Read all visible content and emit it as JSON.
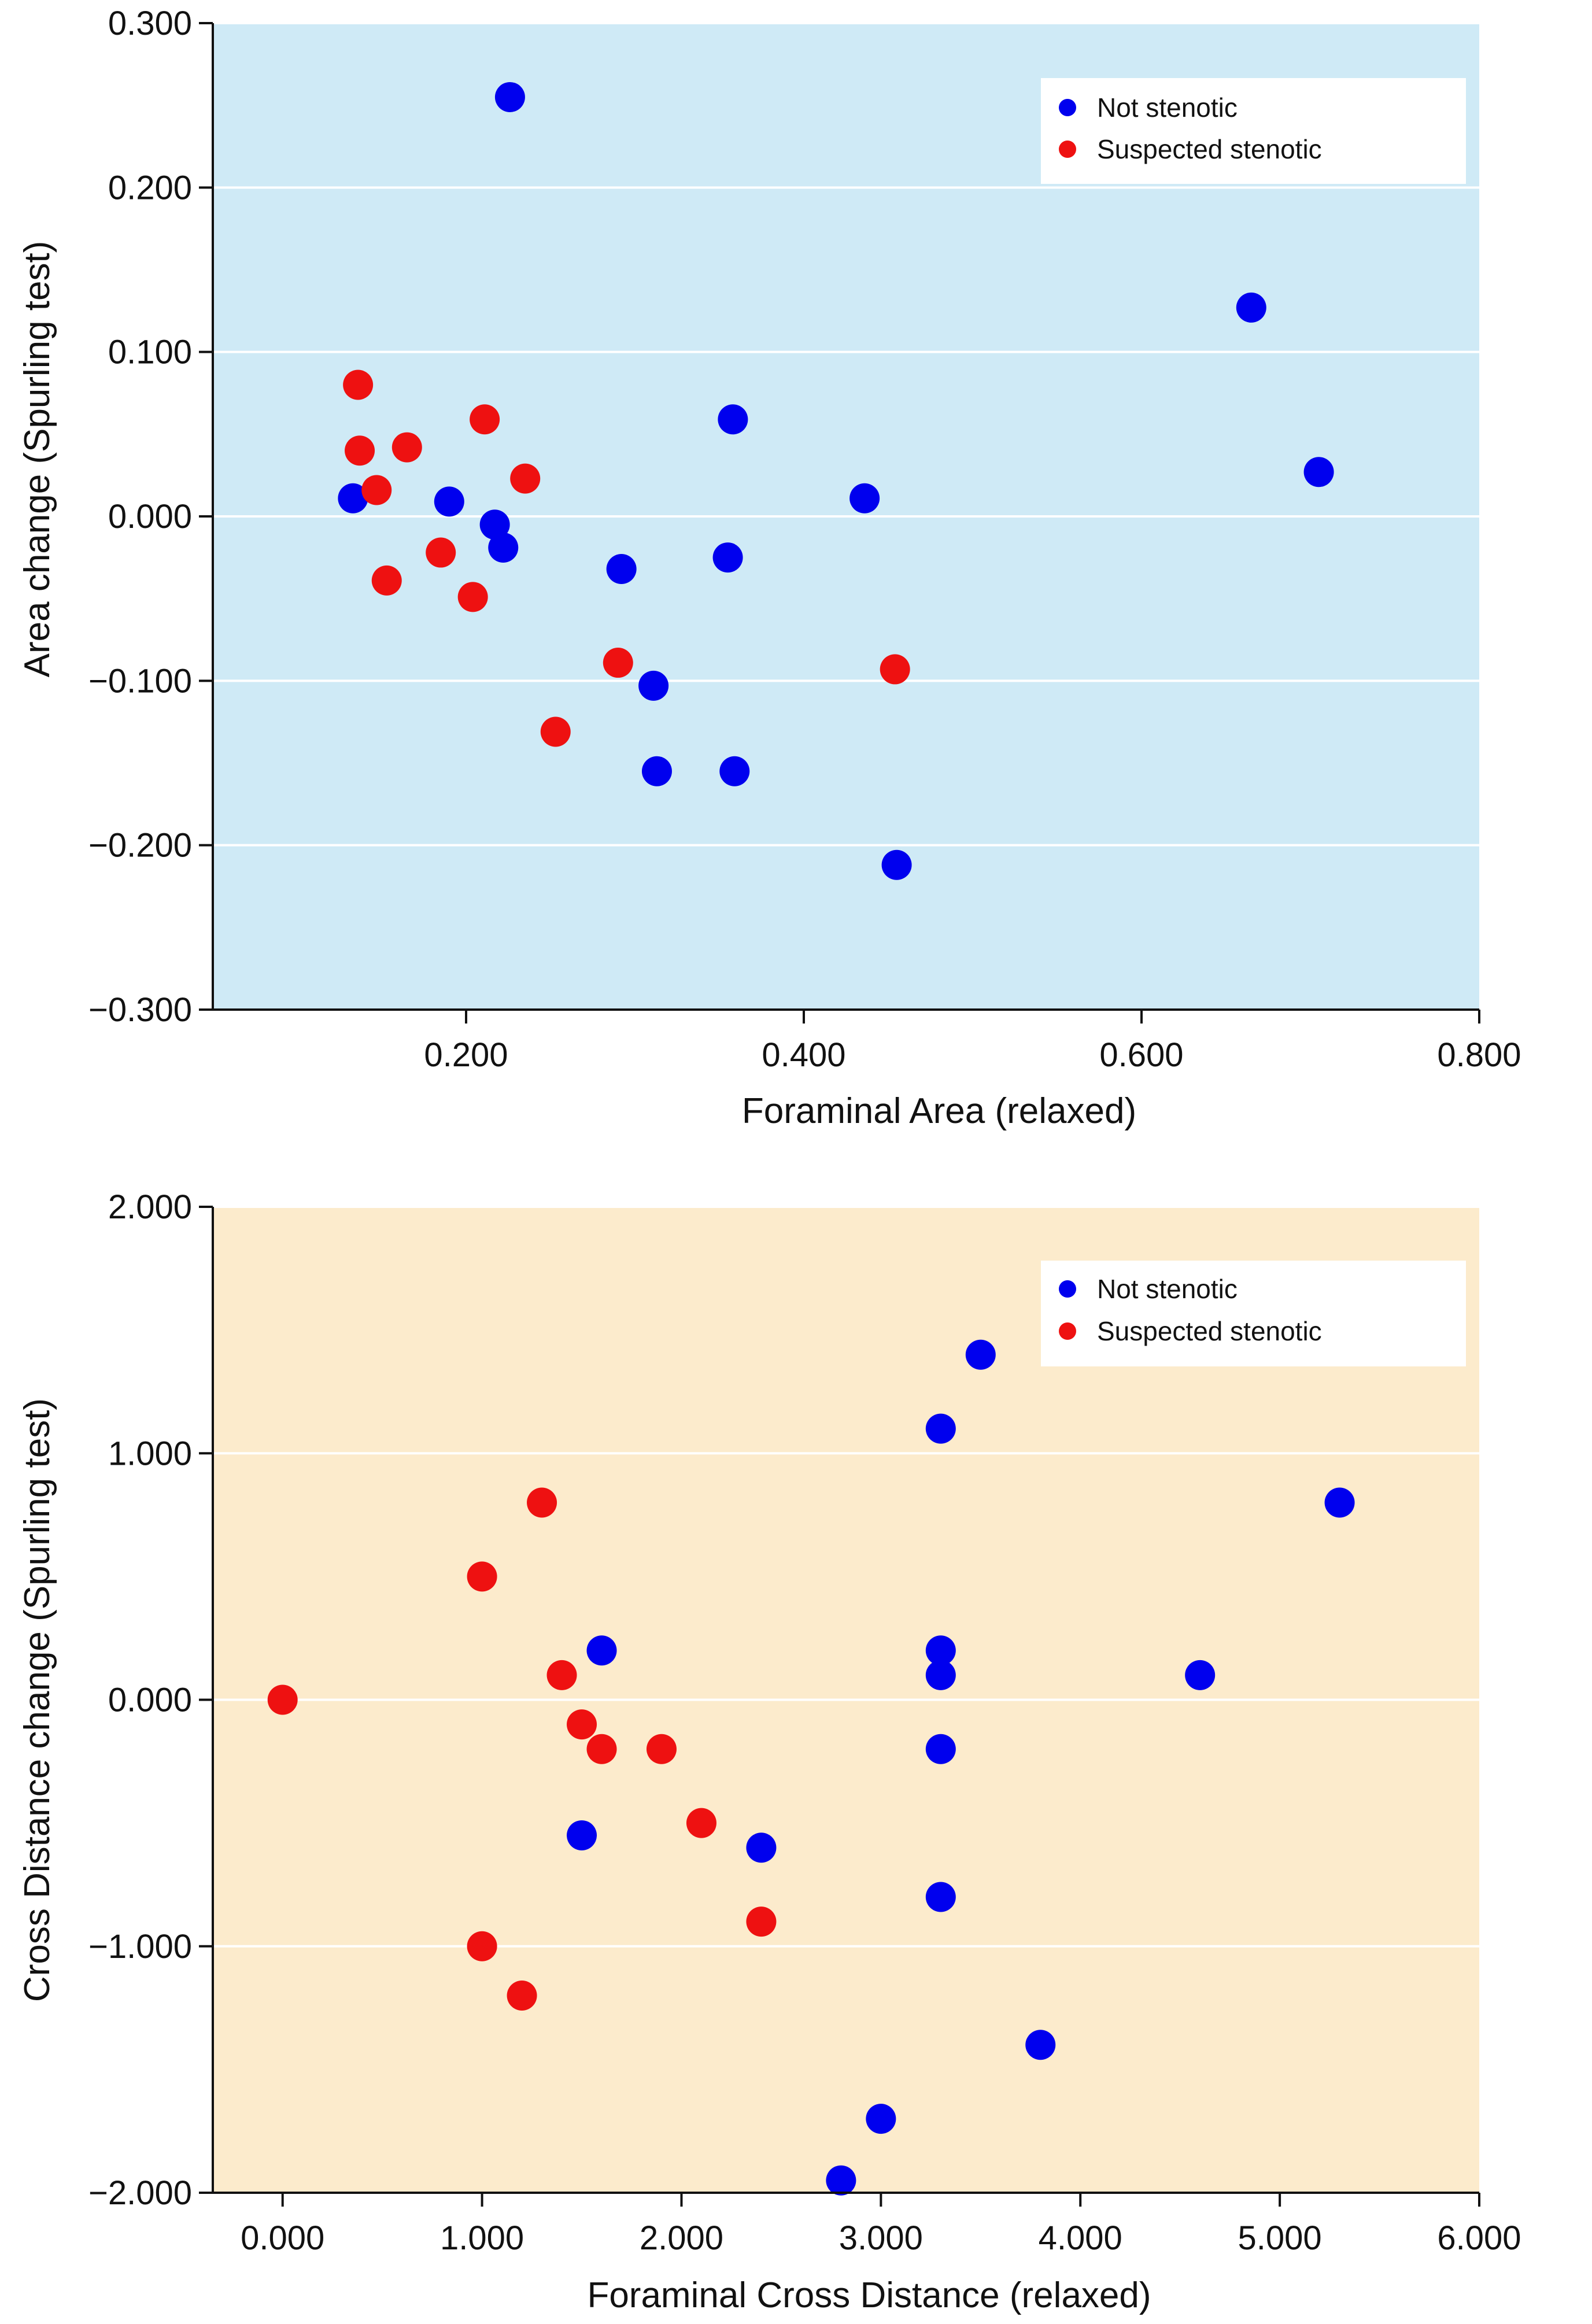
{
  "colors": {
    "not_stenotic": "#0000ee",
    "suspected_stenotic": "#ee1111",
    "top_plot_bg": "#cfeaf6",
    "bottom_plot_bg": "#fcebcc",
    "grid": "#ffffff",
    "axis": "#111111"
  },
  "chart_data": [
    {
      "type": "scatter",
      "xlabel": "Foraminal Area (relaxed)",
      "ylabel": "Area change (Spurling test)",
      "xlim": [
        0.05,
        0.8
      ],
      "ylim": [
        -0.3,
        0.3
      ],
      "xticks": [
        0.2,
        0.4,
        0.6,
        0.8
      ],
      "xtick_labels": [
        "0.200",
        "0.400",
        "0.600",
        "0.800"
      ],
      "yticks": [
        -0.3,
        -0.2,
        -0.1,
        0.0,
        0.1,
        0.2,
        0.3
      ],
      "ytick_labels": [
        "−0.300",
        "−0.200",
        "−0.100",
        "0.000",
        "0.100",
        "0.200",
        "0.300"
      ],
      "grid": "horizontal",
      "legend_position": "top-right",
      "series": [
        {
          "name": "Not stenotic",
          "color_key": "not_stenotic",
          "points": [
            [
              0.226,
              0.255
            ],
            [
              0.133,
              0.011
            ],
            [
              0.19,
              0.009
            ],
            [
              0.217,
              -0.005
            ],
            [
              0.222,
              -0.019
            ],
            [
              0.292,
              -0.032
            ],
            [
              0.311,
              -0.103
            ],
            [
              0.313,
              -0.155
            ],
            [
              0.355,
              -0.025
            ],
            [
              0.358,
              0.059
            ],
            [
              0.359,
              -0.155
            ],
            [
              0.436,
              0.011
            ],
            [
              0.455,
              -0.212
            ],
            [
              0.665,
              0.127
            ],
            [
              0.705,
              0.027
            ]
          ]
        },
        {
          "name": "Suspected stenotic",
          "color_key": "suspected_stenotic",
          "points": [
            [
              0.136,
              0.08
            ],
            [
              0.137,
              0.04
            ],
            [
              0.147,
              0.016
            ],
            [
              0.153,
              -0.039
            ],
            [
              0.165,
              0.042
            ],
            [
              0.185,
              -0.022
            ],
            [
              0.204,
              -0.049
            ],
            [
              0.211,
              0.059
            ],
            [
              0.235,
              0.023
            ],
            [
              0.253,
              -0.131
            ],
            [
              0.29,
              -0.089
            ],
            [
              0.454,
              -0.093
            ]
          ]
        }
      ]
    },
    {
      "type": "scatter",
      "xlabel": "Foraminal Cross Distance (relaxed)",
      "ylabel": "Cross Distance change (Spurling test)",
      "xlim": [
        -0.35,
        6.0
      ],
      "ylim": [
        -2.0,
        2.0
      ],
      "xticks": [
        0.0,
        1.0,
        2.0,
        3.0,
        4.0,
        5.0,
        6.0
      ],
      "xtick_labels": [
        "0.000",
        "1.000",
        "2.000",
        "3.000",
        "4.000",
        "5.000",
        "6.000"
      ],
      "yticks": [
        -2.0,
        -1.0,
        0.0,
        1.0,
        2.0
      ],
      "ytick_labels": [
        "−2.000",
        "−1.000",
        "0.000",
        "1.000",
        "2.000"
      ],
      "grid": "horizontal",
      "legend_position": "top-right",
      "series": [
        {
          "name": "Not stenotic",
          "color_key": "not_stenotic",
          "points": [
            [
              1.6,
              0.2
            ],
            [
              1.5,
              -0.55
            ],
            [
              2.4,
              -0.6
            ],
            [
              2.8,
              -1.95
            ],
            [
              3.0,
              -1.7
            ],
            [
              3.3,
              1.1
            ],
            [
              3.3,
              0.2
            ],
            [
              3.3,
              0.1
            ],
            [
              3.3,
              -0.2
            ],
            [
              3.3,
              -0.8
            ],
            [
              3.5,
              1.4
            ],
            [
              3.8,
              -1.4
            ],
            [
              4.6,
              0.1
            ],
            [
              5.3,
              0.8
            ]
          ]
        },
        {
          "name": "Suspected stenotic",
          "color_key": "suspected_stenotic",
          "points": [
            [
              0.0,
              0.0
            ],
            [
              1.0,
              0.5
            ],
            [
              1.0,
              -1.0
            ],
            [
              1.2,
              -1.2
            ],
            [
              1.3,
              0.8
            ],
            [
              1.4,
              0.1
            ],
            [
              1.5,
              -0.1
            ],
            [
              1.6,
              -0.2
            ],
            [
              1.9,
              -0.2
            ],
            [
              2.1,
              -0.5
            ],
            [
              2.4,
              -0.9
            ]
          ]
        }
      ]
    }
  ]
}
